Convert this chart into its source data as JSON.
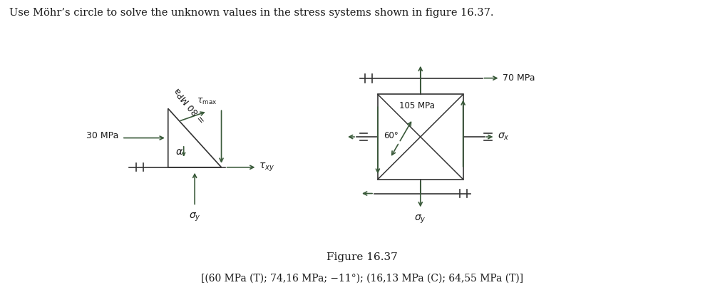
{
  "title": "Use Möhr’s circle to solve the unknown values in the stress systems shown in figure 16.37.",
  "figure_label": "Figure 16.37",
  "answer_line": "[(60 MPa (T); 74,16 MPa; −11°); (16,13 MPa (C); 64,55 MPa (T)]",
  "bg_color": "#ffffff",
  "text_color": "#1a1a1a",
  "diagram_color": "#333333",
  "arrow_color": "#3a5a3a",
  "fig_width": 10.17,
  "fig_height": 4.07,
  "dpi": 100
}
